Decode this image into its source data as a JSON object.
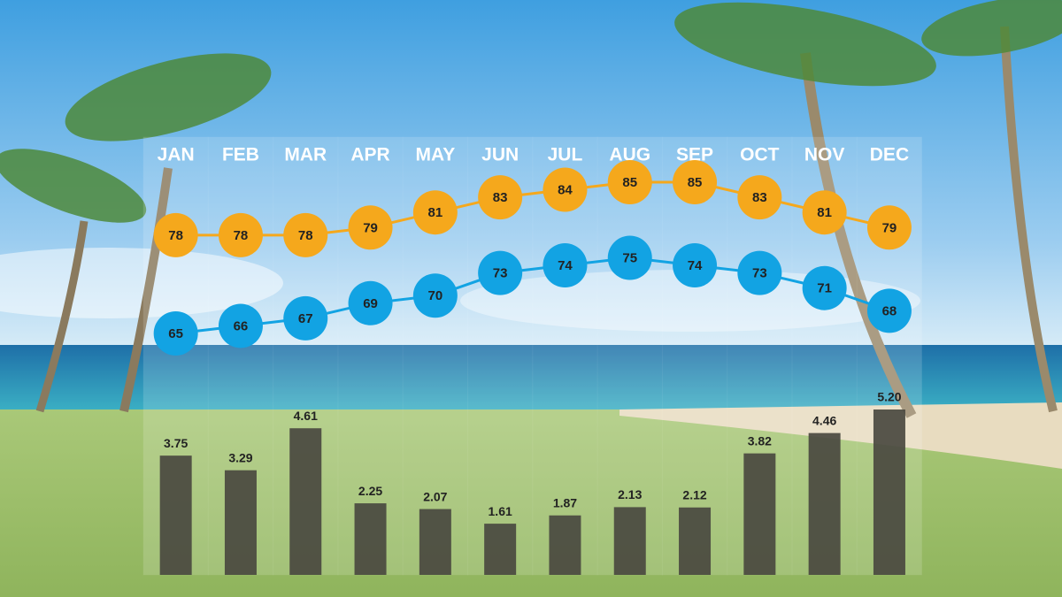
{
  "chart_data": [
    {
      "type": "line",
      "categories": [
        "JAN",
        "FEB",
        "MAR",
        "APR",
        "MAY",
        "JUN",
        "JUL",
        "AUG",
        "SEP",
        "OCT",
        "NOV",
        "DEC"
      ],
      "series": [
        {
          "color": "#f5a81c",
          "values": [
            78,
            78,
            78,
            79,
            81,
            83,
            84,
            85,
            85,
            83,
            81,
            79
          ]
        },
        {
          "color": "#12a3e3",
          "values": [
            65,
            66,
            67,
            69,
            70,
            73,
            74,
            75,
            74,
            73,
            71,
            68
          ]
        }
      ]
    },
    {
      "type": "bar",
      "categories": [
        "JAN",
        "FEB",
        "MAR",
        "APR",
        "MAY",
        "JUN",
        "JUL",
        "AUG",
        "SEP",
        "OCT",
        "NOV",
        "DEC"
      ],
      "values": [
        3.75,
        3.29,
        4.61,
        2.25,
        2.07,
        1.61,
        1.87,
        2.13,
        2.12,
        3.82,
        4.46,
        5.2
      ],
      "value_labels": [
        "3.75",
        "3.29",
        "4.61",
        "2.25",
        "2.07",
        "1.61",
        "1.87",
        "2.13",
        "2.12",
        "3.82",
        "4.46",
        "5.20"
      ],
      "color": "#4a4940"
    }
  ]
}
